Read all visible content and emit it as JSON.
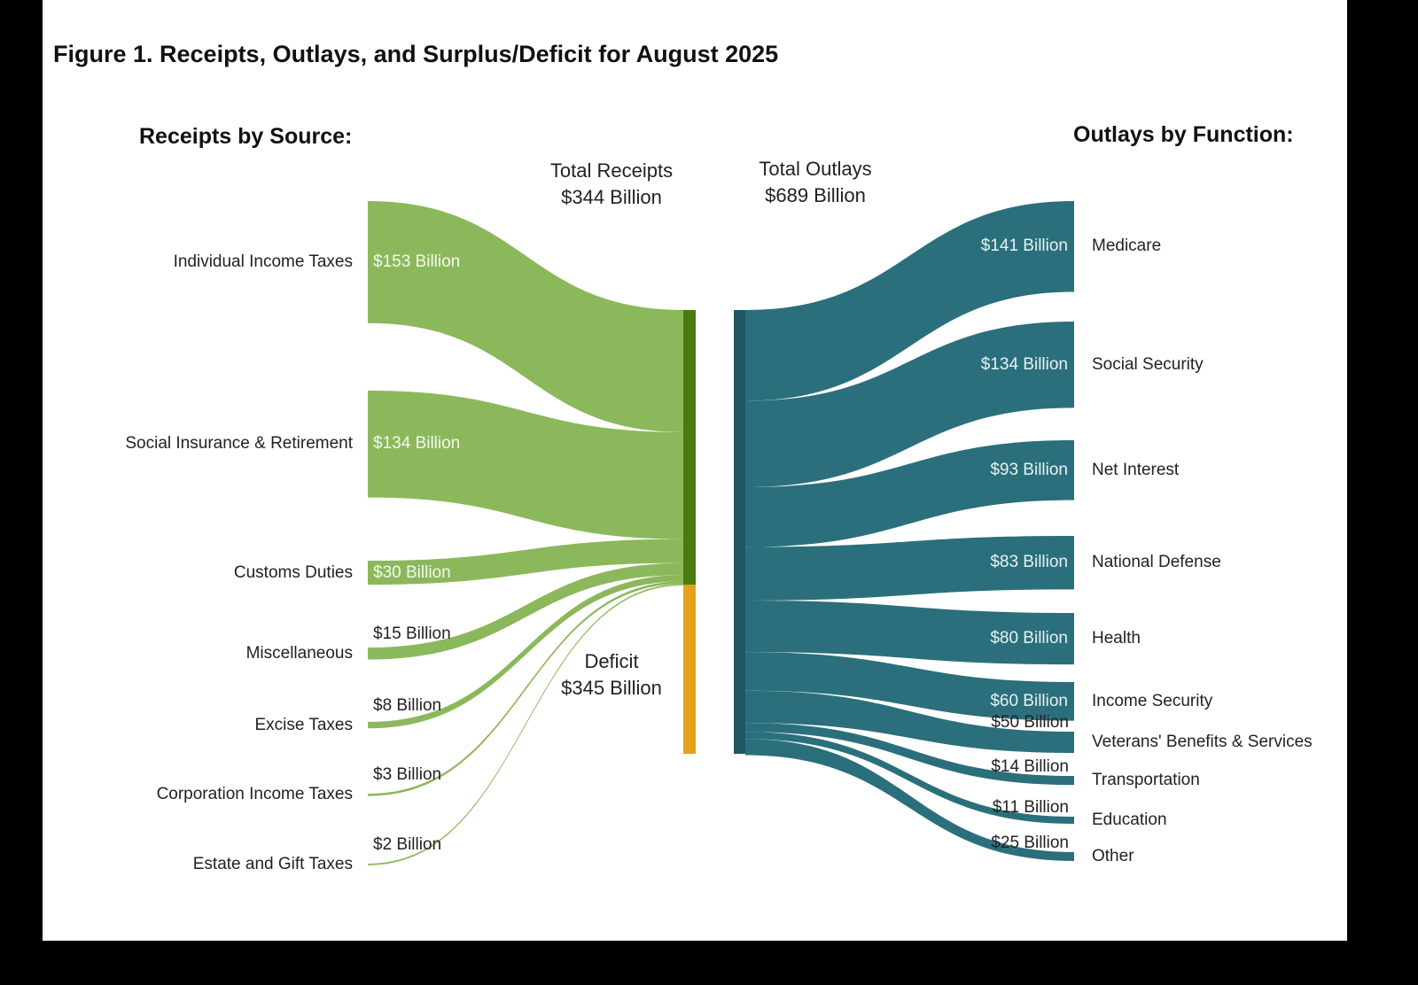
{
  "title": "Figure 1. Receipts, Outlays, and Surplus/Deficit for August 2025",
  "chart_data": {
    "type": "sankey",
    "receipts_heading": "Receipts by Source:",
    "outlays_heading": "Outlays by Function:",
    "total_receipts": {
      "label": "Total Receipts",
      "value_label": "$344 Billion",
      "value": 344
    },
    "total_outlays": {
      "label": "Total Outlays",
      "value_label": "$689 Billion",
      "value": 689
    },
    "deficit": {
      "label": "Deficit",
      "value_label": "$345 Billion",
      "value": 345
    },
    "receipts": [
      {
        "name": "Individual Income Taxes",
        "value": 153,
        "value_label": "$153 Billion"
      },
      {
        "name": "Social Insurance & Retirement",
        "value": 134,
        "value_label": "$134 Billion"
      },
      {
        "name": "Customs Duties",
        "value": 30,
        "value_label": "$30 Billion"
      },
      {
        "name": "Miscellaneous",
        "value": 15,
        "value_label": "$15 Billion"
      },
      {
        "name": "Excise Taxes",
        "value": 8,
        "value_label": "$8 Billion"
      },
      {
        "name": "Corporation Income Taxes",
        "value": 3,
        "value_label": "$3 Billion"
      },
      {
        "name": "Estate and Gift Taxes",
        "value": 2,
        "value_label": "$2 Billion"
      }
    ],
    "outlays": [
      {
        "name": "Medicare",
        "value": 141,
        "value_label": "$141 Billion"
      },
      {
        "name": "Social Security",
        "value": 134,
        "value_label": "$134 Billion"
      },
      {
        "name": "Net Interest",
        "value": 93,
        "value_label": "$93 Billion"
      },
      {
        "name": "National Defense",
        "value": 83,
        "value_label": "$83 Billion"
      },
      {
        "name": "Health",
        "value": 80,
        "value_label": "$80 Billion"
      },
      {
        "name": "Income Security",
        "value": 60,
        "value_label": "$60 Billion"
      },
      {
        "name": "Veterans' Benefits & Services",
        "value": 50,
        "value_label": "$50 Billion"
      },
      {
        "name": "Transportation",
        "value": 14,
        "value_label": "$14 Billion"
      },
      {
        "name": "Education",
        "value": 11,
        "value_label": "$11 Billion"
      },
      {
        "name": "Other",
        "value": 25,
        "value_label": "$25 Billion"
      }
    ],
    "colors": {
      "receipts_flow": "#8cb85c",
      "receipts_bar": "#4a7a12",
      "deficit_bar": "#e3a21a",
      "outlays_flow": "#2b6f7c",
      "outlays_bar": "#1f5761"
    }
  }
}
